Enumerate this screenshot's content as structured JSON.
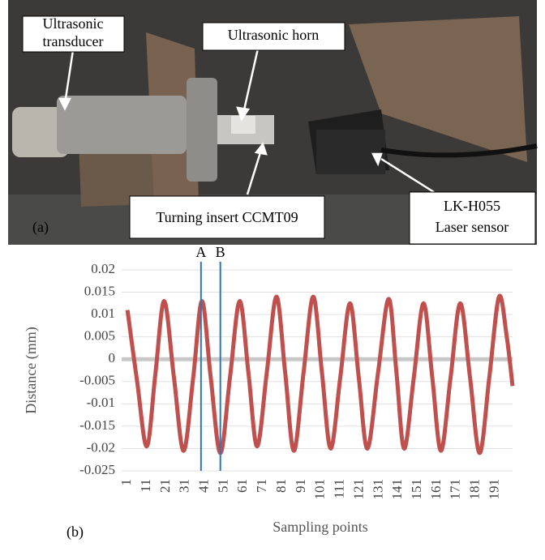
{
  "photo": {
    "panel_label": "(a)",
    "callouts": [
      {
        "lines": [
          "Ultrasonic",
          "transducer"
        ]
      },
      {
        "lines": [
          "Ultrasonic horn"
        ]
      },
      {
        "lines": [
          "Turning insert CCMT09"
        ]
      },
      {
        "lines": [
          "LK-H055",
          "Laser sensor"
        ]
      }
    ]
  },
  "chart_data": {
    "type": "line",
    "panel_label": "(b)",
    "x_label": "Sampling points",
    "y_label": "Distance (mm)",
    "x": [
      1,
      6,
      11,
      15.5,
      20,
      25,
      30,
      35,
      39.5,
      44,
      49,
      54,
      59,
      63.5,
      68,
      73,
      78,
      82.5,
      87,
      92,
      97,
      101.5,
      106,
      111,
      116,
      120.5,
      125,
      130.5,
      136,
      140,
      144,
      149,
      154,
      158.5,
      163,
      168,
      173,
      178,
      183,
      188,
      193,
      197,
      200
    ],
    "series": [
      {
        "color": "#c0504d",
        "values": [
          0.011,
          -0.005,
          -0.0195,
          -0.003,
          0.013,
          -0.004,
          -0.0205,
          -0.004,
          0.013,
          -0.004,
          -0.021,
          -0.004,
          0.013,
          -0.003,
          -0.0195,
          -0.003,
          0.014,
          -0.003,
          -0.0205,
          -0.003,
          0.014,
          -0.003,
          -0.02,
          -0.004,
          0.0125,
          -0.004,
          -0.02,
          -0.003,
          0.0135,
          -0.003,
          -0.02,
          -0.004,
          0.0125,
          -0.004,
          -0.0205,
          -0.004,
          0.0125,
          -0.004,
          -0.021,
          -0.004,
          0.014,
          0.005,
          -0.006
        ]
      }
    ],
    "xlim": [
      -2,
      200
    ],
    "xticks": [
      1,
      11,
      21,
      31,
      41,
      51,
      61,
      71,
      81,
      91,
      101,
      111,
      121,
      131,
      141,
      151,
      161,
      171,
      181,
      191
    ],
    "ylim": [
      -0.025,
      0.02
    ],
    "yticks": [
      0.02,
      0.015,
      0.01,
      0.005,
      0,
      -0.005,
      -0.01,
      -0.015,
      -0.02,
      -0.025
    ],
    "grid": true,
    "annotations": [
      {
        "label": "A",
        "x": 39,
        "color": "#2e75b6"
      },
      {
        "label": "B",
        "x": 49,
        "color": "#2e75b6"
      }
    ]
  }
}
